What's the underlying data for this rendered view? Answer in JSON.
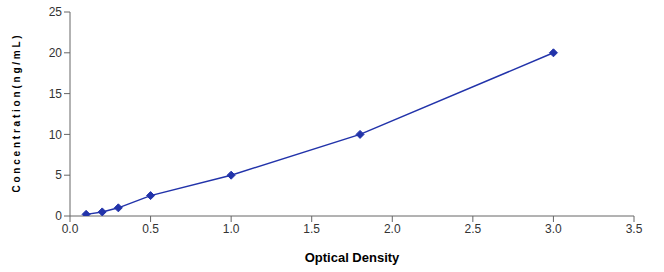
{
  "chart_data": {
    "type": "line",
    "xlabel": "Optical Density",
    "ylabel": "C o n c e n t r a t i o n ( n g / m L )",
    "x": [
      0.1,
      0.2,
      0.3,
      0.5,
      1.0,
      1.8,
      3.0
    ],
    "values": [
      0.2,
      0.5,
      1.0,
      2.5,
      5.0,
      10.0,
      20.0
    ],
    "color": "#2233AA",
    "marker": "diamond",
    "line_style": "solid",
    "xlim": [
      0,
      3.5
    ],
    "ylim": [
      0,
      25
    ],
    "xticks": [
      {
        "value": 0,
        "label": "0.0"
      },
      0.5,
      {
        "value": 1,
        "label": "1.0"
      },
      1.5,
      {
        "value": 2,
        "label": "2.0"
      },
      2.5,
      {
        "value": 3,
        "label": "3.0"
      },
      3.5
    ],
    "yticks": [
      0,
      5,
      10,
      15,
      20,
      25
    ],
    "grid": false
  }
}
